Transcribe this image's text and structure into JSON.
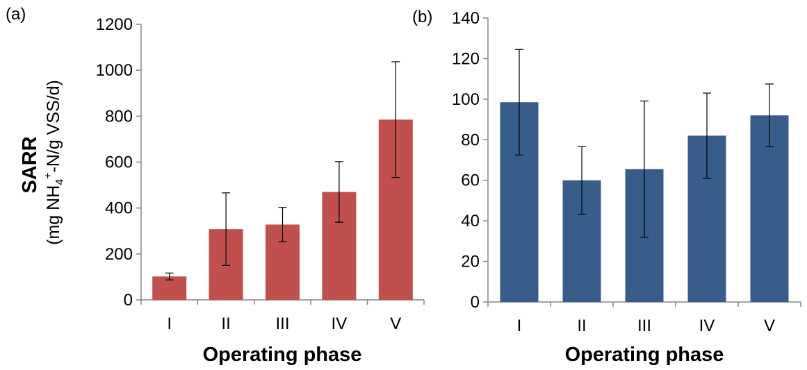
{
  "chart_data": [
    {
      "type": "bar",
      "panel_label": "(a)",
      "categories": [
        "I",
        "II",
        "III",
        "IV",
        "V"
      ],
      "values": [
        102,
        308,
        328,
        470,
        785
      ],
      "errors": [
        15,
        158,
        75,
        132,
        252
      ],
      "color": "#c0504d",
      "xlabel": "Operating phase",
      "ylabel": {
        "bold": "SARR",
        "pre": "(mg NH",
        "sub": "4",
        "sup": "+",
        "post": "-N/g VSS/d)"
      },
      "ylim": [
        0,
        1200
      ],
      "yticks": [
        0,
        200,
        400,
        600,
        800,
        1000,
        1200
      ],
      "grid": false,
      "legend": "none"
    },
    {
      "type": "bar",
      "panel_label": "(b)",
      "categories": [
        "I",
        "II",
        "III",
        "IV",
        "V"
      ],
      "values": [
        98.5,
        60,
        65.5,
        82,
        92
      ],
      "errors": [
        26,
        16.7,
        33.6,
        21,
        15.5
      ],
      "color": "#385d8a",
      "xlabel": "Operating phase",
      "ylim": [
        0,
        140
      ],
      "yticks": [
        0,
        20,
        40,
        60,
        80,
        100,
        120,
        140
      ],
      "grid": false,
      "legend": "none"
    }
  ]
}
